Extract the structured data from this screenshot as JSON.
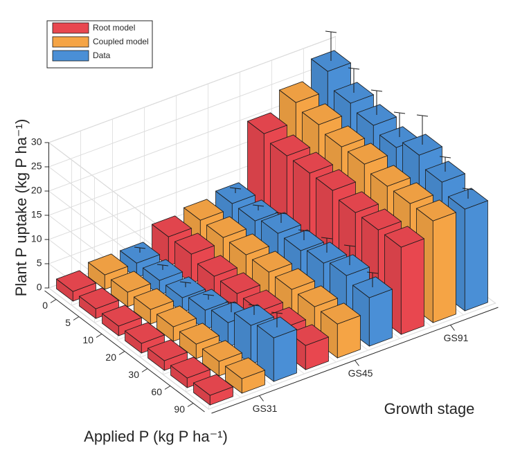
{
  "chart_data": {
    "type": "bar3d",
    "z_label": "Plant P uptake (kg P ha⁻¹)",
    "x_label": "Applied P (kg P ha⁻¹)",
    "y_label": "Growth stage",
    "categories": [
      "0",
      "5",
      "10",
      "20",
      "30",
      "60",
      "90"
    ],
    "groups": [
      "GS31",
      "GS45",
      "GS91"
    ],
    "series": [
      {
        "name": "Root model",
        "color": "#e8474f",
        "values": [
          [
            2,
            2,
            2,
            2,
            2,
            2,
            2
          ],
          [
            6,
            6,
            5,
            5,
            5,
            5,
            5
          ],
          [
            20,
            19,
            19,
            19,
            18,
            18,
            18
          ]
        ]
      },
      {
        "name": "Coupled model",
        "color": "#f5a445",
        "values": [
          [
            3,
            3,
            3,
            3,
            3,
            3,
            3
          ],
          [
            7,
            7,
            7,
            7,
            7,
            7,
            7
          ],
          [
            24,
            23,
            22,
            22,
            21,
            21,
            21
          ]
        ]
      },
      {
        "name": "Data",
        "color": "#4a8fd6",
        "values": [
          [
            3,
            3,
            3,
            4,
            5,
            8,
            9
          ],
          [
            8,
            8,
            9,
            9,
            10,
            11,
            10
          ],
          [
            28,
            25,
            24,
            23,
            25,
            23,
            21
          ]
        ],
        "errors": [
          [
            1,
            1,
            1,
            1,
            2,
            2,
            3
          ],
          [
            1,
            1,
            2,
            2,
            3,
            4,
            3
          ],
          [
            6,
            5,
            5,
            5,
            6,
            3,
            2
          ]
        ]
      }
    ],
    "zlim": [
      0,
      30
    ],
    "zticks": [
      0,
      5,
      10,
      15,
      20,
      25,
      30
    ],
    "grid": true,
    "legend": "upper-left"
  }
}
